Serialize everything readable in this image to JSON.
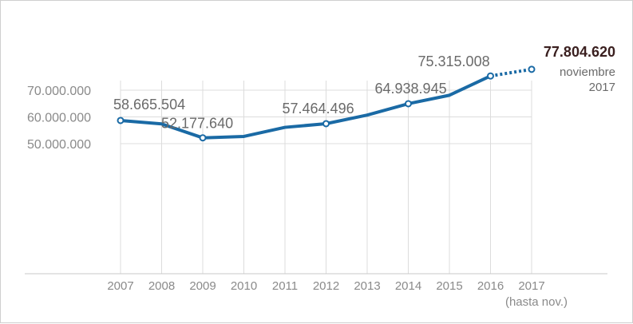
{
  "colors": {
    "line": "#1a6aa5",
    "grid": "#dcdcdc",
    "axis_text": "#8a8a8a",
    "label_text": "#6a6a6a",
    "highlight_text": "#3a1f1f"
  },
  "chart_data": {
    "type": "line",
    "title": "",
    "xlabel": "",
    "ylabel": "",
    "categories": [
      "2007",
      "2008",
      "2009",
      "2010",
      "2011",
      "2012",
      "2013",
      "2014",
      "2015",
      "2016",
      "2017"
    ],
    "x_sublabel": "(hasta nov.)",
    "y_ticks": [
      {
        "value": 70000000,
        "label": "70.000.000"
      },
      {
        "value": 60000000,
        "label": "60.000.000"
      },
      {
        "value": 50000000,
        "label": "50.000.000"
      }
    ],
    "ylim": [
      0,
      80000000
    ],
    "series": [
      {
        "values": [
          58665504,
          57400000,
          52177640,
          52700000,
          56100000,
          57464496,
          60700000,
          64938945,
          68100000,
          75315008,
          77804620
        ],
        "dashed_from_index": 9
      }
    ],
    "data_labels": [
      {
        "index": 0,
        "text": "58.665.504"
      },
      {
        "index": 2,
        "text": "52.177.640"
      },
      {
        "index": 5,
        "text": "57.464.496"
      },
      {
        "index": 7,
        "text": "64.938.945"
      },
      {
        "index": 9,
        "text": "75.315.008"
      }
    ],
    "highlight": {
      "index": 10,
      "value_text": "77.804.620",
      "note_lines": [
        "noviembre",
        "2017"
      ]
    },
    "marked_points": [
      0,
      2,
      5,
      7,
      9,
      10
    ],
    "grid": true,
    "legend": "none"
  }
}
